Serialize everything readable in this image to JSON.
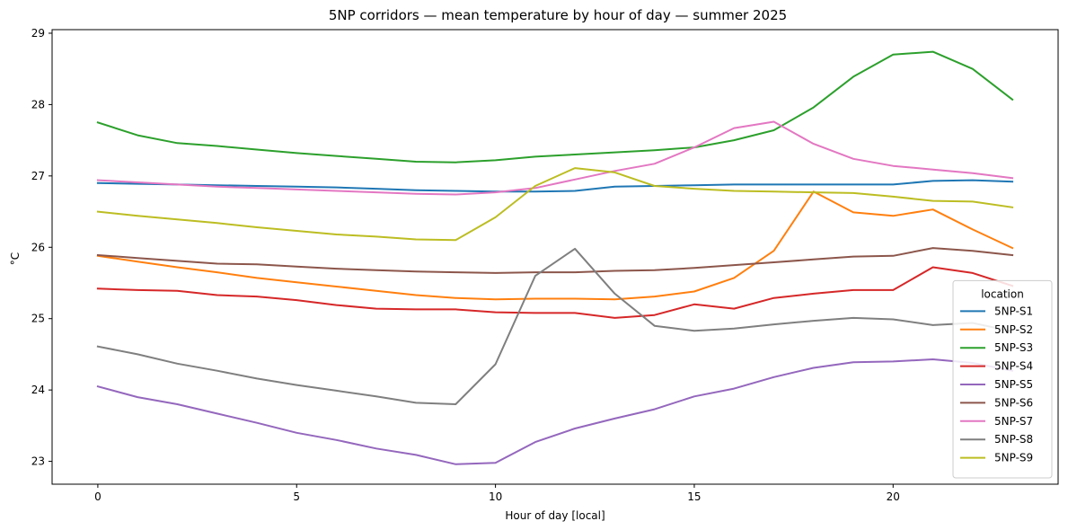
{
  "chart_data": {
    "type": "line",
    "title": "5NP corridors — mean temperature by hour of day — summer 2025",
    "xlabel": "Hour of day [local]",
    "ylabel": "°C",
    "xlim": [
      -1.15,
      24.15
    ],
    "ylim": [
      22.68,
      29.05
    ],
    "xticks": [
      0,
      5,
      10,
      15,
      20
    ],
    "yticks": [
      23,
      24,
      25,
      26,
      27,
      28,
      29
    ],
    "legend_title": "location",
    "legend_position": "lower-right",
    "x": [
      0,
      1,
      2,
      3,
      4,
      5,
      6,
      7,
      8,
      9,
      10,
      11,
      12,
      13,
      14,
      15,
      16,
      17,
      18,
      19,
      20,
      21,
      22,
      23
    ],
    "series": [
      {
        "name": "5NP-S1",
        "color": "#1f77b4",
        "values": [
          26.9,
          26.89,
          26.88,
          26.87,
          26.86,
          26.85,
          26.84,
          26.82,
          26.8,
          26.79,
          26.78,
          26.78,
          26.79,
          26.85,
          26.86,
          26.87,
          26.88,
          26.88,
          26.88,
          26.88,
          26.88,
          26.93,
          26.94,
          26.92
        ]
      },
      {
        "name": "5NP-S2",
        "color": "#ff7f0e",
        "values": [
          25.88,
          25.8,
          25.72,
          25.65,
          25.57,
          25.51,
          25.45,
          25.39,
          25.33,
          25.29,
          25.27,
          25.28,
          25.28,
          25.27,
          25.31,
          25.38,
          25.57,
          25.95,
          26.78,
          26.49,
          26.44,
          26.53,
          26.25,
          25.99
        ]
      },
      {
        "name": "5NP-S3",
        "color": "#2ca02c",
        "values": [
          27.75,
          27.57,
          27.46,
          27.42,
          27.37,
          27.32,
          27.28,
          27.24,
          27.2,
          27.19,
          27.22,
          27.27,
          27.3,
          27.33,
          27.36,
          27.4,
          27.5,
          27.64,
          27.96,
          28.39,
          28.7,
          28.74,
          28.5,
          28.07
        ]
      },
      {
        "name": "5NP-S4",
        "color": "#d62728",
        "values": [
          25.42,
          25.4,
          25.39,
          25.33,
          25.31,
          25.26,
          25.19,
          25.14,
          25.13,
          25.13,
          25.09,
          25.08,
          25.08,
          25.01,
          25.05,
          25.2,
          25.14,
          25.29,
          25.35,
          25.4,
          25.4,
          25.72,
          25.64,
          25.46
        ]
      },
      {
        "name": "5NP-S5",
        "color": "#9467bd",
        "values": [
          24.05,
          23.9,
          23.8,
          23.67,
          23.54,
          23.4,
          23.3,
          23.18,
          23.09,
          22.96,
          22.98,
          23.27,
          23.46,
          23.6,
          23.73,
          23.91,
          24.02,
          24.18,
          24.31,
          24.39,
          24.4,
          24.43,
          24.38,
          24.27
        ]
      },
      {
        "name": "5NP-S6",
        "color": "#8c564b",
        "values": [
          25.89,
          25.85,
          25.81,
          25.77,
          25.76,
          25.73,
          25.7,
          25.68,
          25.66,
          25.65,
          25.64,
          25.65,
          25.65,
          25.67,
          25.68,
          25.71,
          25.75,
          25.79,
          25.83,
          25.87,
          25.88,
          25.99,
          25.95,
          25.89
        ]
      },
      {
        "name": "5NP-S7",
        "color": "#e377c2",
        "values": [
          26.94,
          26.91,
          26.88,
          26.85,
          26.83,
          26.81,
          26.79,
          26.77,
          26.75,
          26.74,
          26.77,
          26.83,
          26.95,
          27.07,
          27.17,
          27.4,
          27.67,
          27.76,
          27.45,
          27.24,
          27.14,
          27.09,
          27.04,
          26.97
        ]
      },
      {
        "name": "5NP-S8",
        "color": "#7f7f7f",
        "values": [
          24.61,
          24.5,
          24.37,
          24.27,
          24.16,
          24.07,
          23.99,
          23.91,
          23.82,
          23.8,
          24.36,
          25.6,
          25.98,
          25.35,
          24.9,
          24.83,
          24.86,
          24.92,
          24.97,
          25.01,
          24.99,
          24.91,
          24.94,
          24.82
        ]
      },
      {
        "name": "5NP-S9",
        "color": "#bcbd22",
        "values": [
          26.5,
          26.44,
          26.39,
          26.34,
          26.28,
          26.23,
          26.18,
          26.15,
          26.11,
          26.1,
          26.42,
          26.86,
          27.11,
          27.05,
          26.86,
          26.82,
          26.79,
          26.78,
          26.77,
          26.76,
          26.71,
          26.65,
          26.64,
          26.56
        ]
      }
    ]
  }
}
